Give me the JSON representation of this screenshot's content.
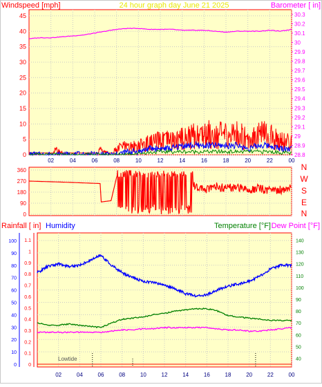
{
  "header": {
    "left_title": "Windspeed [mph]",
    "center_title": "24 hour graph day   June 21 2025",
    "right_title": "Barometer [ in]"
  },
  "colors": {
    "page_bg": "#ffffff",
    "plot_bg": "#ffffc8",
    "grid": "#c8c8c8",
    "axis_red": "#ff0000",
    "wind": "#ff0000",
    "gust": "#0000ff",
    "wind_avg": "#008000",
    "barometer": "#ff00ff",
    "direction": "#ff0000",
    "humidity": "#0000ff",
    "temperature": "#008000",
    "dewpoint": "#ff00ff",
    "rain": "#ff0000",
    "title_yellow": "#e8e800"
  },
  "x_axis": {
    "ticks": [
      "02",
      "04",
      "06",
      "08",
      "10",
      "12",
      "14",
      "16",
      "18",
      "20",
      "22",
      "00"
    ]
  },
  "wind_panel": {
    "left_ticks": [
      "0",
      "5",
      "10",
      "15",
      "20",
      "25",
      "30",
      "35",
      "40",
      "45"
    ],
    "right_ticks": [
      "28.8",
      "28.9",
      "29",
      "29.1",
      "29.2",
      "29.3",
      "29.4",
      "29.5",
      "29.6",
      "29.7",
      "29.8",
      "29.9",
      "30",
      "30.1",
      "30.2",
      "30.3"
    ]
  },
  "direction_panel": {
    "left_ticks": [
      "0",
      "90",
      "180",
      "270",
      "360"
    ],
    "compass_labels": [
      "N",
      "W",
      "S",
      "E",
      "N"
    ]
  },
  "climate_panel": {
    "left_label_rain": "Rainfall [ in]",
    "left_label_humidity": "Humidity",
    "right_label_temp": "Temperature [°F]",
    "right_label_dew": "Dew Point [°F]",
    "humidity_ticks": [
      "0",
      "10",
      "20",
      "30",
      "40",
      "50",
      "60",
      "70",
      "80",
      "90",
      "100"
    ],
    "rain_ticks": [
      "0",
      "0.1",
      "0.2",
      "0.3",
      "0.4",
      "0.5",
      "0.6",
      "0.7",
      "0.8",
      "0.9",
      "1",
      "1.1"
    ],
    "temp_ticks": [
      "40",
      "50",
      "60",
      "70",
      "80",
      "90",
      "100",
      "110",
      "120",
      "130",
      "140"
    ],
    "tide_label": "Lowtide"
  },
  "chart_data": [
    {
      "type": "line",
      "panel": "wind",
      "x_unit": "hour",
      "xlim": [
        0,
        24
      ],
      "ylim_left": [
        0,
        47
      ],
      "ylim_right": [
        28.8,
        30.35
      ],
      "series": [
        {
          "role": "barometer",
          "axis": "right",
          "x": [
            0,
            1,
            2,
            3,
            4,
            5,
            6,
            7,
            8,
            9,
            10,
            11,
            12,
            13,
            14,
            15,
            16,
            17,
            18,
            19,
            20,
            21,
            22,
            23,
            24
          ],
          "values": [
            30.04,
            30.05,
            30.05,
            30.06,
            30.07,
            30.08,
            30.1,
            30.12,
            30.14,
            30.15,
            30.15,
            30.14,
            30.14,
            30.14,
            30.13,
            30.13,
            30.13,
            30.12,
            30.11,
            30.12,
            30.12,
            30.12,
            30.13,
            30.12,
            30.14
          ]
        },
        {
          "role": "wind_speed",
          "axis": "left",
          "x": [
            0,
            1,
            2,
            2.5,
            3,
            4,
            5,
            6,
            6.5,
            7,
            8,
            8.5,
            9,
            10,
            11,
            12,
            13,
            14,
            15,
            16,
            17,
            18,
            19,
            20,
            21,
            22,
            23,
            24
          ],
          "values": [
            1,
            1,
            1,
            2,
            1,
            1,
            1,
            1,
            2,
            1,
            2,
            4,
            3,
            4,
            5,
            6,
            6,
            7,
            8,
            9,
            9,
            8,
            9,
            7,
            9,
            8,
            6,
            5
          ]
        },
        {
          "role": "wind_gust",
          "axis": "left",
          "x": [
            0,
            8,
            9,
            10,
            11,
            12,
            13,
            14,
            15,
            16,
            17,
            18,
            19,
            20,
            21,
            22,
            23,
            24
          ],
          "values": [
            0,
            0,
            1,
            1,
            2,
            2,
            2,
            3,
            3,
            3,
            3,
            3,
            3,
            2,
            3,
            3,
            2,
            2
          ]
        },
        {
          "role": "wind_average",
          "axis": "left",
          "x": [
            0,
            8,
            10,
            12,
            14,
            16,
            18,
            20,
            22,
            24
          ],
          "values": [
            0,
            0,
            0.5,
            1,
            1,
            1,
            1,
            1,
            1,
            0.5
          ]
        }
      ]
    },
    {
      "type": "line",
      "panel": "direction",
      "x_unit": "hour",
      "xlim": [
        0,
        24
      ],
      "ylim": [
        0,
        360
      ],
      "series": [
        {
          "role": "wind_direction",
          "x": [
            0,
            3.5,
            6.5,
            6.6,
            7.5,
            8,
            8.5,
            9,
            9.5,
            10,
            10.5,
            11,
            11.5,
            12,
            12.5,
            13,
            13.5,
            14,
            14.5,
            15,
            16,
            17,
            18,
            19,
            20,
            21,
            22,
            23,
            24
          ],
          "values": [
            270,
            260,
            250,
            100,
            110,
            300,
            60,
            330,
            20,
            340,
            30,
            300,
            40,
            320,
            60,
            330,
            80,
            300,
            250,
            240,
            200,
            230,
            210,
            220,
            200,
            210,
            190,
            200,
            210
          ]
        }
      ]
    },
    {
      "type": "line",
      "panel": "climate",
      "x_unit": "hour",
      "xlim": [
        0,
        24
      ],
      "ylim_humidity": [
        0,
        105
      ],
      "ylim_temperature": [
        35,
        145
      ],
      "series": [
        {
          "role": "humidity",
          "axis": "humidity",
          "x": [
            0,
            1,
            2,
            3,
            4,
            5,
            6,
            7,
            8,
            9,
            10,
            11,
            12,
            13,
            14,
            15,
            16,
            17,
            18,
            19,
            20,
            21,
            22,
            23,
            24
          ],
          "values": [
            74,
            79,
            81,
            79,
            80,
            84,
            88,
            80,
            74,
            70,
            67,
            66,
            64,
            61,
            57,
            55,
            56,
            60,
            63,
            65,
            67,
            71,
            77,
            80,
            80
          ]
        },
        {
          "role": "temperature",
          "axis": "temperature",
          "x": [
            0,
            1,
            2,
            3,
            4,
            5,
            6,
            7,
            8,
            9,
            10,
            11,
            12,
            13,
            14,
            15,
            16,
            17,
            18,
            19,
            20,
            21,
            22,
            23,
            24
          ],
          "values": [
            70,
            68,
            68,
            69,
            68,
            67,
            66,
            70,
            73,
            74,
            75,
            77,
            78,
            80,
            81,
            82,
            82,
            80,
            76,
            75,
            74,
            73,
            72,
            72,
            72
          ]
        },
        {
          "role": "dew_point",
          "axis": "temperature",
          "x": [
            0,
            1,
            2,
            3,
            4,
            5,
            6,
            7,
            8,
            9,
            10,
            11,
            12,
            13,
            14,
            15,
            16,
            17,
            18,
            19,
            20,
            21,
            22,
            23,
            24
          ],
          "values": [
            62,
            62,
            62,
            62,
            62,
            62,
            62,
            63,
            64,
            64,
            65,
            65,
            66,
            66,
            66,
            66,
            66,
            65,
            64,
            64,
            63,
            63,
            64,
            65,
            66
          ]
        },
        {
          "role": "rainfall",
          "axis": "rain",
          "x": [
            0,
            24
          ],
          "values": [
            0,
            0
          ]
        }
      ],
      "tide_markers": [
        {
          "hour": 5.2,
          "kind": "low"
        },
        {
          "hour": 9.0,
          "kind": "high"
        },
        {
          "hour": 20.6,
          "kind": "low"
        }
      ]
    }
  ]
}
